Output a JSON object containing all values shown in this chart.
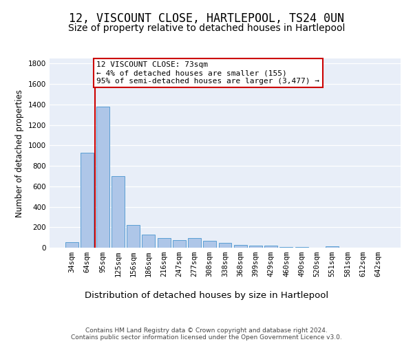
{
  "title_line1": "12, VISCOUNT CLOSE, HARTLEPOOL, TS24 0UN",
  "title_line2": "Size of property relative to detached houses in Hartlepool",
  "xlabel": "Distribution of detached houses by size in Hartlepool",
  "ylabel": "Number of detached properties",
  "categories": [
    "34sqm",
    "64sqm",
    "95sqm",
    "125sqm",
    "156sqm",
    "186sqm",
    "216sqm",
    "247sqm",
    "277sqm",
    "308sqm",
    "338sqm",
    "368sqm",
    "399sqm",
    "429sqm",
    "460sqm",
    "490sqm",
    "520sqm",
    "551sqm",
    "581sqm",
    "612sqm",
    "642sqm"
  ],
  "values": [
    55,
    925,
    1380,
    700,
    220,
    130,
    95,
    75,
    95,
    65,
    45,
    30,
    20,
    20,
    10,
    8,
    0,
    12,
    0,
    0,
    0
  ],
  "bar_color": "#aec6e8",
  "bar_edge_color": "#5a9fd4",
  "ylim": [
    0,
    1850
  ],
  "yticks": [
    0,
    200,
    400,
    600,
    800,
    1000,
    1200,
    1400,
    1600,
    1800
  ],
  "annotation_text": "12 VISCOUNT CLOSE: 73sqm\n← 4% of detached houses are smaller (155)\n95% of semi-detached houses are larger (3,477) →",
  "annotation_box_color": "#ffffff",
  "annotation_box_edge": "#cc0000",
  "vline_color": "#cc0000",
  "background_color": "#e8eef8",
  "footer_text": "Contains HM Land Registry data © Crown copyright and database right 2024.\nContains public sector information licensed under the Open Government Licence v3.0.",
  "title_fontsize": 12,
  "subtitle_fontsize": 10,
  "xlabel_fontsize": 9.5,
  "ylabel_fontsize": 8.5,
  "tick_fontsize": 7.5,
  "annotation_fontsize": 8
}
